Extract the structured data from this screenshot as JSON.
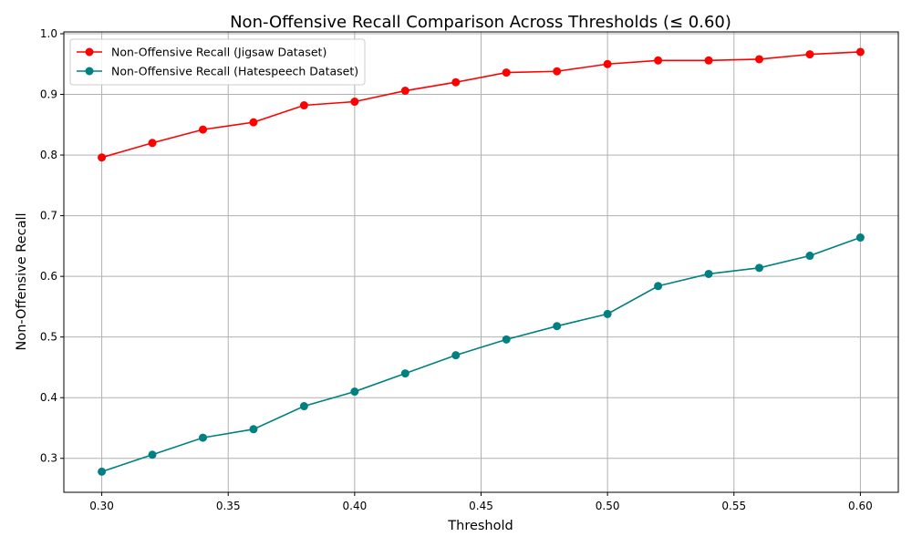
{
  "chart_data": {
    "type": "line",
    "title": "Non-Offensive Recall Comparison Across Thresholds (≤ 0.60)",
    "xlabel": "Threshold",
    "ylabel": "Non-Offensive Recall",
    "x": [
      0.3,
      0.32,
      0.34,
      0.36,
      0.38,
      0.4,
      0.42,
      0.44,
      0.46,
      0.48,
      0.5,
      0.52,
      0.54,
      0.56,
      0.58,
      0.6
    ],
    "xlim": [
      0.285,
      0.615
    ],
    "ylim": [
      0.244,
      1.003
    ],
    "xticks": [
      0.3,
      0.35,
      0.4,
      0.45,
      0.5,
      0.55,
      0.6
    ],
    "xtick_labels": [
      "0.30",
      "0.35",
      "0.40",
      "0.45",
      "0.50",
      "0.55",
      "0.60"
    ],
    "yticks": [
      0.3,
      0.4,
      0.5,
      0.6,
      0.7,
      0.8,
      0.9,
      1.0
    ],
    "ytick_labels": [
      "0.3",
      "0.4",
      "0.5",
      "0.6",
      "0.7",
      "0.8",
      "0.9",
      "1.0"
    ],
    "grid": true,
    "legend_position": "upper-left",
    "series": [
      {
        "name": "Non-Offensive Recall (Jigsaw Dataset)",
        "color": "#ff0000",
        "marker": "circle",
        "values": [
          0.796,
          0.82,
          0.842,
          0.854,
          0.882,
          0.888,
          0.906,
          0.92,
          0.936,
          0.938,
          0.95,
          0.956,
          0.956,
          0.958,
          0.966,
          0.97
        ]
      },
      {
        "name": "Non-Offensive Recall (Hatespeech Dataset)",
        "color": "#008080",
        "marker": "circle",
        "values": [
          0.278,
          0.306,
          0.334,
          0.348,
          0.386,
          0.41,
          0.44,
          0.47,
          0.496,
          0.518,
          0.538,
          0.584,
          0.604,
          0.614,
          0.634,
          0.664
        ]
      }
    ]
  }
}
